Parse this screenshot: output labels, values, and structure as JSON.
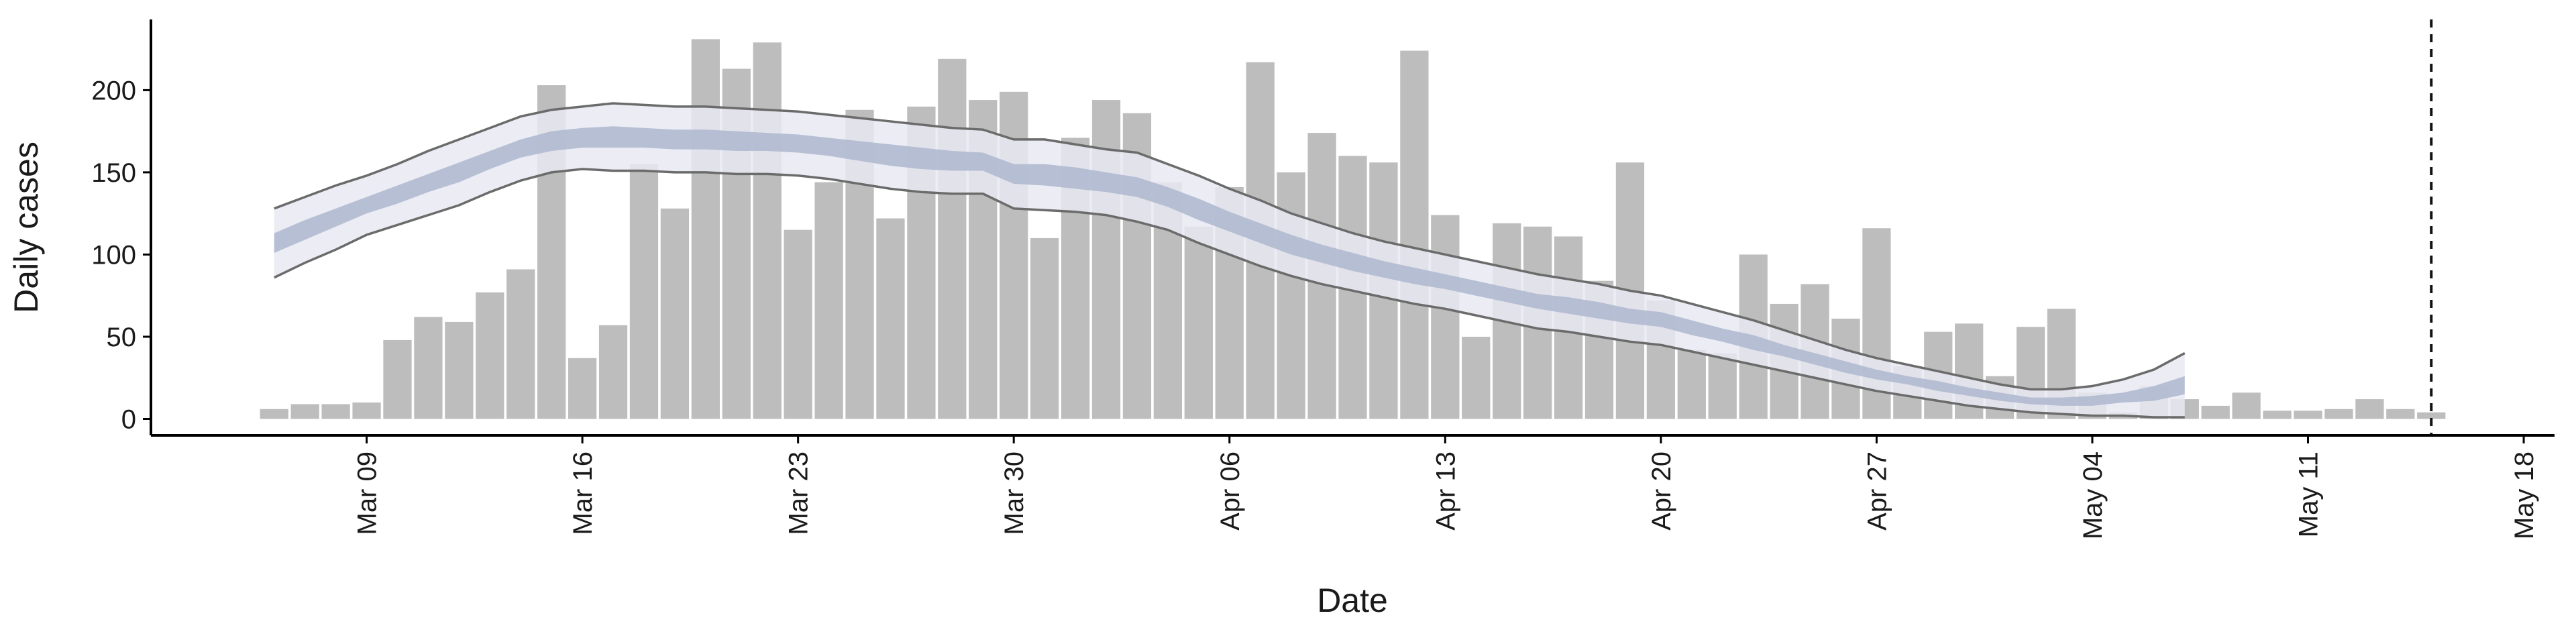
{
  "chart_data": {
    "type": "bar",
    "xlabel": "Date",
    "ylabel": "Daily cases",
    "x": [
      "Mar 06",
      "Mar 07",
      "Mar 08",
      "Mar 09",
      "Mar 10",
      "Mar 11",
      "Mar 12",
      "Mar 13",
      "Mar 14",
      "Mar 15",
      "Mar 16",
      "Mar 17",
      "Mar 18",
      "Mar 19",
      "Mar 20",
      "Mar 21",
      "Mar 22",
      "Mar 23",
      "Mar 24",
      "Mar 25",
      "Mar 26",
      "Mar 27",
      "Mar 28",
      "Mar 29",
      "Mar 30",
      "Mar 31",
      "Apr 01",
      "Apr 02",
      "Apr 03",
      "Apr 04",
      "Apr 05",
      "Apr 06",
      "Apr 07",
      "Apr 08",
      "Apr 09",
      "Apr 10",
      "Apr 11",
      "Apr 12",
      "Apr 13",
      "Apr 14",
      "Apr 15",
      "Apr 16",
      "Apr 17",
      "Apr 18",
      "Apr 19",
      "Apr 20",
      "Apr 21",
      "Apr 22",
      "Apr 23",
      "Apr 24",
      "Apr 25",
      "Apr 26",
      "Apr 27",
      "Apr 28",
      "Apr 29",
      "Apr 30",
      "May 01",
      "May 02",
      "May 03",
      "May 04",
      "May 05",
      "May 06",
      "May 07",
      "May 08",
      "May 09",
      "May 10",
      "May 11",
      "May 12",
      "May 13",
      "May 14",
      "May 15"
    ],
    "values": [
      6,
      9,
      9,
      10,
      48,
      62,
      59,
      77,
      91,
      203,
      37,
      57,
      155,
      128,
      231,
      213,
      229,
      115,
      144,
      188,
      122,
      190,
      219,
      194,
      199,
      110,
      171,
      194,
      186,
      144,
      117,
      141,
      217,
      150,
      174,
      160,
      156,
      224,
      124,
      50,
      119,
      117,
      111,
      84,
      156,
      72,
      42,
      40,
      100,
      70,
      82,
      61,
      116,
      32,
      53,
      58,
      26,
      56,
      67,
      16,
      4,
      20,
      12,
      8,
      16,
      5,
      5,
      6,
      12,
      6,
      4
    ],
    "color": "#bdbdbd",
    "bands": [
      {
        "color": "#e7e9f2",
        "line_color": "#6b6b6b",
        "upper": [
          128,
          135,
          142,
          148,
          155,
          163,
          170,
          177,
          184,
          188,
          190,
          192,
          191,
          190,
          190,
          189,
          188,
          187,
          185,
          183,
          181,
          179,
          177,
          176,
          170,
          170,
          167,
          164,
          162,
          155,
          148,
          140,
          133,
          125,
          119,
          113,
          108,
          104,
          100,
          96,
          92,
          88,
          85,
          82,
          78,
          75,
          70,
          65,
          60,
          54,
          48,
          42,
          37,
          33,
          29,
          25,
          21,
          18,
          18,
          20,
          24,
          30,
          40,
          null,
          null,
          null,
          null,
          null,
          null,
          null,
          null
        ],
        "lower": [
          86,
          95,
          103,
          112,
          118,
          124,
          130,
          138,
          145,
          150,
          152,
          151,
          151,
          150,
          150,
          149,
          149,
          148,
          146,
          143,
          140,
          138,
          137,
          137,
          128,
          127,
          126,
          124,
          120,
          115,
          107,
          100,
          93,
          87,
          82,
          78,
          74,
          70,
          67,
          63,
          59,
          55,
          53,
          50,
          47,
          45,
          41,
          37,
          33,
          29,
          25,
          21,
          17,
          14,
          11,
          8,
          6,
          4,
          3,
          2,
          2,
          1,
          1,
          null,
          null,
          null,
          null,
          null,
          null,
          null,
          null
        ]
      },
      {
        "color": "#aeb7cf",
        "upper": [
          113,
          121,
          128,
          135,
          142,
          149,
          156,
          163,
          170,
          175,
          177,
          178,
          177,
          176,
          176,
          175,
          174,
          173,
          171,
          169,
          167,
          165,
          163,
          162,
          155,
          155,
          153,
          150,
          147,
          141,
          134,
          126,
          119,
          112,
          106,
          101,
          96,
          92,
          88,
          84,
          80,
          76,
          74,
          71,
          67,
          65,
          60,
          55,
          51,
          45,
          40,
          35,
          30,
          26,
          23,
          19,
          16,
          13,
          13,
          14,
          16,
          20,
          26,
          null,
          null,
          null,
          null,
          null,
          null,
          null,
          null
        ],
        "lower": [
          101,
          109,
          117,
          125,
          131,
          138,
          144,
          152,
          159,
          163,
          165,
          165,
          165,
          164,
          164,
          163,
          163,
          162,
          160,
          157,
          154,
          152,
          151,
          151,
          143,
          142,
          140,
          138,
          135,
          129,
          121,
          114,
          107,
          100,
          95,
          90,
          86,
          82,
          79,
          75,
          71,
          67,
          64,
          61,
          58,
          56,
          51,
          47,
          42,
          38,
          33,
          28,
          24,
          21,
          17,
          14,
          11,
          9,
          8,
          8,
          10,
          11,
          15,
          null,
          null,
          null,
          null,
          null,
          null,
          null,
          null
        ]
      }
    ],
    "vline": "May 15",
    "xlim": [
      "Mar 02",
      "May 19"
    ],
    "xticks": [
      "Mar 09",
      "Mar 16",
      "Mar 23",
      "Mar 30",
      "Apr 06",
      "Apr 13",
      "Apr 20",
      "Apr 27",
      "May 04",
      "May 11",
      "May 18"
    ],
    "ylim": [
      -10,
      243
    ],
    "yticks": [
      0,
      50,
      100,
      150,
      200
    ]
  }
}
